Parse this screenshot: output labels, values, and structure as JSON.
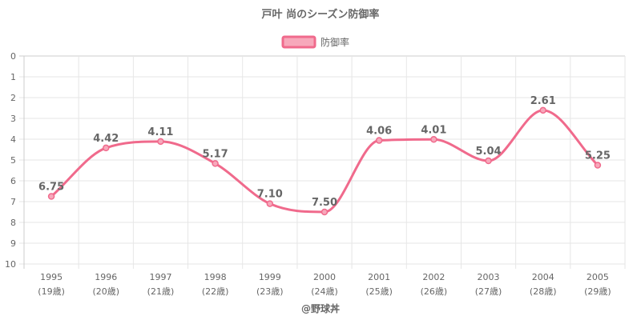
{
  "chart_data": {
    "type": "line",
    "title": "戸叶 尚のシーズン防御率",
    "credit": "@野球丼",
    "categories": [
      "1995",
      "1996",
      "1997",
      "1998",
      "1999",
      "2000",
      "2001",
      "2002",
      "2003",
      "2004",
      "2005"
    ],
    "sublabels": [
      "(19歳)",
      "(20歳)",
      "(21歳)",
      "(22歳)",
      "(23歳)",
      "(24歳)",
      "(25歳)",
      "(26歳)",
      "(27歳)",
      "(28歳)",
      "(29歳)"
    ],
    "series": [
      {
        "name": "防御率",
        "values": [
          6.75,
          4.42,
          4.11,
          5.17,
          7.1,
          7.5,
          4.06,
          4.01,
          5.04,
          2.61,
          5.25
        ],
        "labels": [
          "6.75",
          "4.42",
          "4.11",
          "5.17",
          "7.10",
          "7.50",
          "4.06",
          "4.01",
          "5.04",
          "2.61",
          "5.25"
        ],
        "color": "#f06a8c",
        "fill": "#f7a8bb"
      }
    ],
    "y_ticks": [
      "0",
      "1",
      "2",
      "3",
      "4",
      "5",
      "6",
      "7",
      "8",
      "9",
      "10"
    ],
    "ylim": [
      0,
      10
    ],
    "y_reversed": true,
    "grid": true,
    "legend_position": "top-center"
  }
}
